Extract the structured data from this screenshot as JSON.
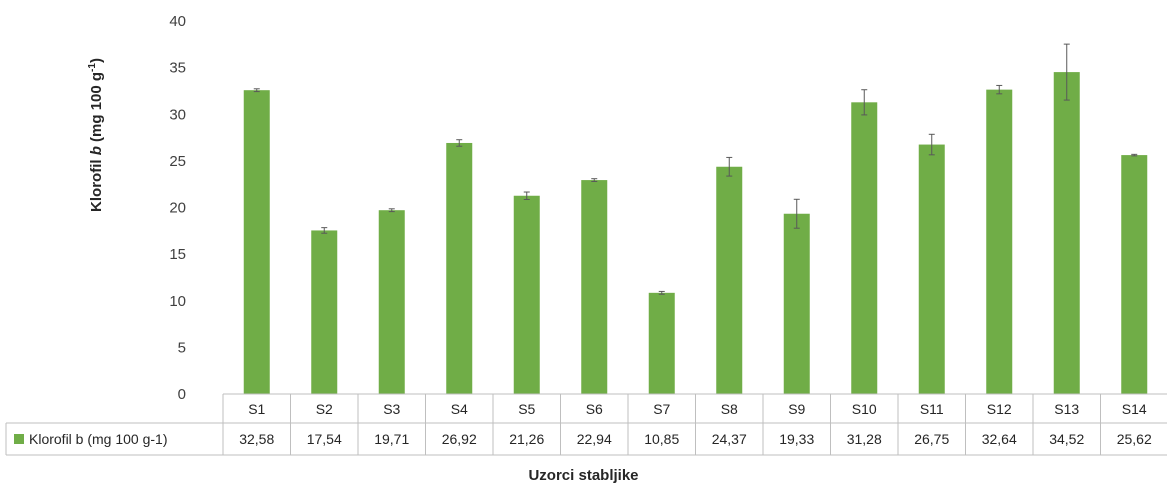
{
  "chart_data": {
    "type": "bar",
    "categories": [
      "S1",
      "S2",
      "S3",
      "S4",
      "S5",
      "S6",
      "S7",
      "S8",
      "S9",
      "S10",
      "S11",
      "S12",
      "S13",
      "S14"
    ],
    "series": [
      {
        "name": "Klorofil b (mg 100 g-1)",
        "values": [
          32.58,
          17.54,
          19.71,
          26.92,
          21.26,
          22.94,
          10.85,
          24.37,
          19.33,
          31.28,
          26.75,
          32.64,
          34.52,
          25.62
        ],
        "value_labels": [
          "32,58",
          "17,54",
          "19,71",
          "26,92",
          "21,26",
          "22,94",
          "10,85",
          "24,37",
          "19,33",
          "31,28",
          "26,75",
          "32,64",
          "34,52",
          "25,62"
        ],
        "errors": [
          0.15,
          0.3,
          0.15,
          0.35,
          0.4,
          0.15,
          0.15,
          1.0,
          1.55,
          1.35,
          1.1,
          0.45,
          3.0,
          0.08
        ],
        "color": "#70ad47"
      }
    ],
    "xlabel": "Uzorci stabljike",
    "ylabel": {
      "prefix": "Klorofil ",
      "italic": "b",
      "unit_open": " (mg 100 g",
      "sup": "-1",
      "unit_close": ")"
    },
    "yticks": [
      0,
      5,
      10,
      15,
      20,
      25,
      30,
      35,
      40
    ],
    "ylim": [
      0,
      40
    ],
    "grid": false,
    "legend": "data-table",
    "error_bar_color": "#595959"
  }
}
